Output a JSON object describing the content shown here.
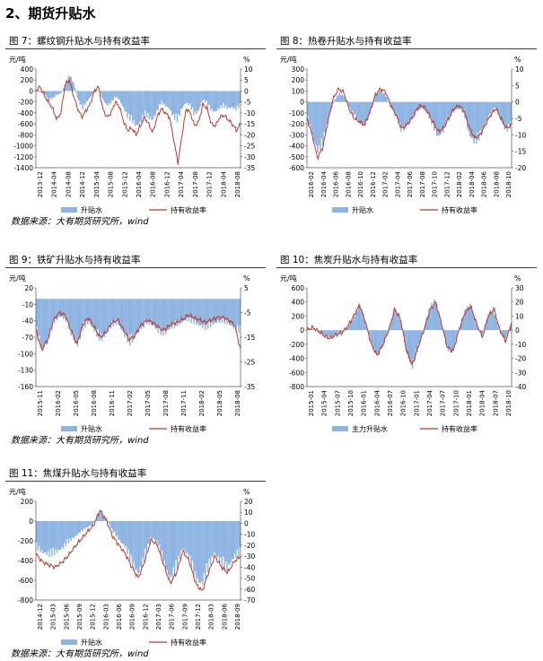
{
  "section": {
    "title": "2、期货升贴水"
  },
  "source": "数据来源：大有期货研究所，wind",
  "colors": {
    "bar": "#8db4e2",
    "line": "#c0392b"
  },
  "chart_data": [
    {
      "id": "fig7",
      "type": "bar+line",
      "title": "图 7：螺纹钢升贴水与持有收益率",
      "ylabel_left": "元/吨",
      "ylabel_right": "%",
      "ylim_left": [
        -1400,
        400
      ],
      "yticks_left": [
        400,
        200,
        0,
        -200,
        -400,
        -600,
        -800,
        -1000,
        -1200,
        -1400
      ],
      "ylim_right": [
        -35,
        10
      ],
      "yticks_right": [
        10,
        5,
        0,
        -5,
        -10,
        -15,
        -20,
        -25,
        -30,
        -35
      ],
      "x_ticks": [
        "2013-12",
        "2014-04",
        "2014-08",
        "2014-12",
        "2015-04",
        "2015-08",
        "2015-12",
        "2016-04",
        "2016-08",
        "2016-12",
        "2017-04",
        "2017-08",
        "2017-12",
        "2018-04",
        "2018-08"
      ],
      "legend": [
        "升贴水",
        "持有收益率"
      ],
      "series": [
        {
          "name": "升贴水",
          "kind": "bar",
          "axis": "left",
          "values": [
            0,
            -20,
            -60,
            -150,
            -120,
            -60,
            -40,
            150,
            280,
            120,
            -150,
            -300,
            -200,
            -100,
            -20,
            20,
            -150,
            -250,
            -200,
            -100,
            -150,
            -300,
            -450,
            -500,
            -600,
            -550,
            -400,
            -450,
            -500,
            -350,
            -200,
            -250,
            -300,
            -450,
            -500,
            -300,
            -200,
            -250,
            -400,
            -350,
            -150,
            -200,
            -320,
            -360,
            -300,
            -250,
            -300,
            -280,
            -320,
            -250
          ]
        },
        {
          "name": "持有收益率",
          "kind": "line",
          "axis": "right",
          "values": [
            0,
            2,
            -2,
            -5,
            -8,
            -13,
            -10,
            3,
            5,
            -2,
            -8,
            -12,
            -9,
            -6,
            0,
            2,
            -8,
            -12,
            -10,
            -5,
            -7,
            -14,
            -18,
            -17,
            -20,
            -16,
            -12,
            -15,
            -19,
            -12,
            -8,
            -10,
            -12,
            -22,
            -33,
            -20,
            -8,
            -10,
            -16,
            -14,
            -6,
            -8,
            -15,
            -16,
            -12,
            -11,
            -13,
            -15,
            -18,
            -15
          ]
        }
      ]
    },
    {
      "id": "fig8",
      "type": "bar+line",
      "title": "图 8：热卷升贴水与持有收益率",
      "ylabel_left": "元/吨",
      "ylabel_right": "%",
      "ylim_left": [
        -600,
        300
      ],
      "yticks_left": [
        300,
        200,
        100,
        0,
        -100,
        -200,
        -300,
        -400,
        -500,
        -600
      ],
      "ylim_right": [
        -20,
        10
      ],
      "yticks_right": [
        10,
        5,
        0,
        -5,
        -10,
        -15,
        -20
      ],
      "x_ticks": [
        "2016-02",
        "2016-04",
        "2016-06",
        "2016-08",
        "2016-10",
        "2016-12",
        "2017-02",
        "2017-04",
        "2017-06",
        "2017-08",
        "2017-10",
        "2017-12",
        "2018-02",
        "2018-04",
        "2018-06",
        "2018-08",
        "2018-10"
      ],
      "legend": [
        "升贴水",
        "持有收益率"
      ],
      "series": [
        {
          "name": "升贴水",
          "kind": "bar",
          "axis": "left",
          "values": [
            -150,
            -300,
            -420,
            -350,
            -150,
            0,
            80,
            50,
            -50,
            -120,
            -180,
            -200,
            -100,
            50,
            100,
            60,
            -50,
            -120,
            -250,
            -200,
            -150,
            -80,
            -50,
            -100,
            -200,
            -300,
            -250,
            -150,
            -80,
            -50,
            -100,
            -280,
            -350,
            -300,
            -200,
            -100,
            -50,
            -150,
            -250,
            -200
          ]
        },
        {
          "name": "持有收益率",
          "kind": "line",
          "axis": "right",
          "values": [
            -5,
            -10,
            -17,
            -14,
            -6,
            1,
            4,
            3,
            -2,
            -5,
            -6,
            -7,
            -3,
            2,
            4,
            3,
            -1,
            -4,
            -8,
            -7,
            -5,
            -2,
            -1,
            -3,
            -6,
            -9,
            -8,
            -5,
            -2,
            -1,
            -3,
            -8,
            -11,
            -10,
            -7,
            -4,
            -2,
            -5,
            -8,
            -7
          ]
        }
      ]
    },
    {
      "id": "fig9",
      "type": "bar+line",
      "title": "图 9：铁矿升贴水与持有收益率",
      "ylabel_left": "元/吨",
      "ylabel_right": "%",
      "ylim_left": [
        -160,
        20
      ],
      "yticks_left": [
        20,
        -10,
        -40,
        -70,
        -100,
        -130,
        -160
      ],
      "ylim_right": [
        -35,
        5
      ],
      "yticks_right": [
        5,
        -5,
        -15,
        -25,
        -35
      ],
      "x_ticks": [
        "2015-11",
        "2016-02",
        "2016-05",
        "2016-08",
        "2016-11",
        "2017-02",
        "2017-05",
        "2017-08",
        "2017-11",
        "2018-02",
        "2018-05",
        "2018-08"
      ],
      "legend": [
        "升贴水",
        "持有收益率"
      ],
      "series": [
        {
          "name": "升贴水",
          "kind": "bar",
          "axis": "left",
          "values": [
            -60,
            -90,
            -70,
            -40,
            -30,
            -35,
            -60,
            -80,
            -50,
            -40,
            -55,
            -70,
            -60,
            -45,
            -40,
            -60,
            -75,
            -65,
            -50,
            -40,
            -45,
            -55,
            -60,
            -50,
            -45,
            -40,
            -35,
            -40,
            -45,
            -50,
            -45,
            -40,
            -38,
            -42,
            -50,
            -55
          ]
        },
        {
          "name": "持有收益率",
          "kind": "line",
          "axis": "right",
          "values": [
            -12,
            -20,
            -16,
            -8,
            -5,
            -6,
            -12,
            -18,
            -10,
            -7,
            -11,
            -15,
            -13,
            -9,
            -8,
            -12,
            -16,
            -14,
            -10,
            -8,
            -9,
            -11,
            -12,
            -10,
            -9,
            -8,
            -6,
            -7,
            -8,
            -9,
            -8,
            -7,
            -7,
            -8,
            -10,
            -20
          ]
        }
      ]
    },
    {
      "id": "fig10",
      "type": "bar+line",
      "title": "图 10：焦炭升贴水与持有收益率",
      "ylabel_left": "元/吨",
      "ylabel_right": "%",
      "ylim_left": [
        -800,
        600
      ],
      "yticks_left": [
        600,
        400,
        200,
        0,
        -200,
        -400,
        -600,
        -800
      ],
      "ylim_right": [
        -40,
        30
      ],
      "yticks_right": [
        30,
        20,
        10,
        0,
        -10,
        -20,
        -30,
        -40
      ],
      "x_ticks": [
        "2015-01",
        "2015-04",
        "2015-07",
        "2015-10",
        "2016-01",
        "2016-04",
        "2016-07",
        "2016-10",
        "2017-01",
        "2017-04",
        "2017-07",
        "2017-10",
        "2018-01",
        "2018-04",
        "2018-07",
        "2018-10"
      ],
      "legend": [
        "主力升贴水",
        "持有收益率"
      ],
      "series": [
        {
          "name": "主力升贴水",
          "kind": "bar",
          "axis": "left",
          "values": [
            0,
            20,
            -20,
            -80,
            -100,
            -60,
            -30,
            50,
            200,
            350,
            100,
            -200,
            -350,
            -200,
            0,
            300,
            150,
            -300,
            -500,
            -250,
            0,
            300,
            400,
            100,
            -250,
            -300,
            0,
            250,
            350,
            100,
            -100,
            200,
            300,
            0,
            -150,
            100
          ]
        },
        {
          "name": "持有收益率",
          "kind": "line",
          "axis": "right",
          "values": [
            0,
            2,
            -1,
            -4,
            -6,
            -3,
            -2,
            3,
            10,
            18,
            6,
            -10,
            -18,
            -10,
            0,
            15,
            8,
            -14,
            -25,
            -12,
            0,
            14,
            20,
            5,
            -12,
            -15,
            0,
            12,
            17,
            5,
            -5,
            10,
            15,
            0,
            -8,
            5
          ]
        }
      ]
    },
    {
      "id": "fig11",
      "type": "bar+line",
      "title": "图 11：焦煤升贴水与持有收益率",
      "ylabel_left": "元/吨",
      "ylabel_right": "%",
      "ylim_left": [
        -800,
        200
      ],
      "yticks_left": [
        200,
        0,
        -200,
        -400,
        -600,
        -800
      ],
      "ylim_right": [
        -70,
        20
      ],
      "yticks_right": [
        20,
        10,
        0,
        -10,
        -20,
        -30,
        -40,
        -50,
        -60,
        -70
      ],
      "x_ticks": [
        "2014-12",
        "2015-03",
        "2015-06",
        "2015-09",
        "2015-12",
        "2016-03",
        "2016-06",
        "2016-09",
        "2016-12",
        "2017-03",
        "2017-06",
        "2017-09",
        "2017-12",
        "2018-03",
        "2018-06",
        "2018-09"
      ],
      "legend": [
        "升贴水",
        "持有收益率"
      ],
      "series": [
        {
          "name": "升贴水",
          "kind": "bar",
          "axis": "left",
          "values": [
            -250,
            -300,
            -320,
            -300,
            -260,
            -200,
            -150,
            -100,
            -60,
            -20,
            100,
            20,
            -100,
            -180,
            -250,
            -400,
            -500,
            -350,
            -150,
            -200,
            -400,
            -550,
            -450,
            -250,
            -350,
            -550,
            -600,
            -450,
            -300,
            -400,
            -450,
            -350,
            -300
          ]
        },
        {
          "name": "持有收益率",
          "kind": "line",
          "axis": "right",
          "values": [
            -28,
            -35,
            -38,
            -40,
            -36,
            -30,
            -22,
            -15,
            -8,
            -2,
            12,
            3,
            -12,
            -20,
            -28,
            -40,
            -50,
            -35,
            -15,
            -20,
            -38,
            -55,
            -45,
            -25,
            -35,
            -55,
            -62,
            -45,
            -30,
            -40,
            -45,
            -35,
            -30
          ]
        }
      ]
    }
  ]
}
